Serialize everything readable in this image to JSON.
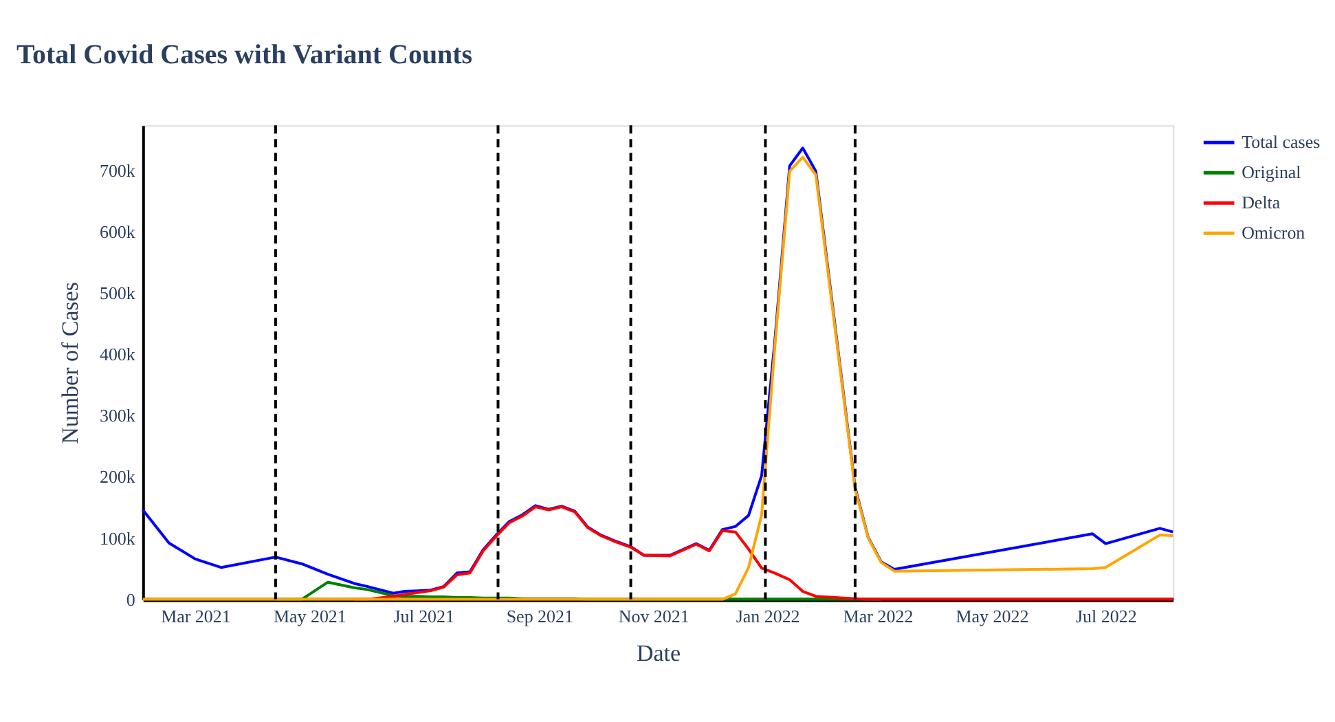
{
  "chart_data": {
    "type": "line",
    "title": "Total Covid Cases with Variant Counts",
    "xlabel": "Date",
    "ylabel": "Number of Cases",
    "x": [
      "2021-02-01",
      "2021-02-15",
      "2021-03-01",
      "2021-03-15",
      "2021-04-13",
      "2021-04-27",
      "2021-05-11",
      "2021-05-25",
      "2021-06-01",
      "2021-06-15",
      "2021-06-21",
      "2021-06-28",
      "2021-07-05",
      "2021-07-12",
      "2021-07-19",
      "2021-07-26",
      "2021-08-02",
      "2021-08-09",
      "2021-08-16",
      "2021-08-23",
      "2021-08-30",
      "2021-09-06",
      "2021-09-13",
      "2021-09-20",
      "2021-09-27",
      "2021-10-04",
      "2021-10-11",
      "2021-10-20",
      "2021-10-27",
      "2021-11-10",
      "2021-11-24",
      "2021-12-01",
      "2021-12-08",
      "2021-12-15",
      "2021-12-22",
      "2021-12-29",
      "2022-01-05",
      "2022-01-13",
      "2022-01-20",
      "2022-01-27",
      "2022-02-17",
      "2022-02-24",
      "2022-03-03",
      "2022-03-10",
      "2022-06-24",
      "2022-07-01",
      "2022-07-30",
      "2022-08-06"
    ],
    "series": [
      {
        "name": "Total cases",
        "color": "#0000ff",
        "values": [
          146000,
          92000,
          66000,
          52000,
          69000,
          58000,
          41000,
          26000,
          21000,
          10000,
          13000,
          14000,
          15000,
          21000,
          43000,
          45000,
          81000,
          105000,
          127000,
          138000,
          153000,
          147000,
          152000,
          144000,
          118000,
          105000,
          96000,
          86000,
          72000,
          72000,
          91000,
          80000,
          114000,
          119000,
          137000,
          202000,
          420000,
          708000,
          737000,
          699000,
          183000,
          101000,
          61000,
          49000,
          107000,
          91000,
          116000,
          110000
        ]
      },
      {
        "name": "Original",
        "color": "#008000",
        "values": [
          null,
          null,
          null,
          null,
          0,
          0,
          28000,
          19000,
          16000,
          6000,
          5000,
          5000,
          4000,
          4000,
          3000,
          3000,
          2000,
          2000,
          2000,
          1000,
          1000,
          1000,
          1000,
          1000,
          0,
          0,
          0,
          0,
          0,
          0,
          0,
          0,
          0,
          0,
          0,
          0,
          0,
          0,
          0,
          0,
          0,
          0,
          0,
          null,
          null,
          null,
          null,
          null
        ]
      },
      {
        "name": "Delta",
        "color": "#ff0000",
        "values": [
          null,
          null,
          null,
          null,
          null,
          null,
          null,
          0,
          0,
          5000,
          8000,
          11000,
          14000,
          20000,
          40000,
          43000,
          79000,
          103000,
          125000,
          136000,
          151000,
          146000,
          151000,
          143000,
          117000,
          104000,
          95000,
          85000,
          72000,
          71000,
          90000,
          79000,
          112000,
          110000,
          82000,
          51000,
          43000,
          32000,
          13000,
          5000,
          1000,
          0,
          0,
          0,
          0,
          0,
          0,
          0
        ]
      },
      {
        "name": "Omicron",
        "color": "#ffa500",
        "values": [
          0,
          0,
          0,
          0,
          0,
          0,
          0,
          0,
          0,
          0,
          0,
          0,
          0,
          0,
          0,
          0,
          0,
          0,
          0,
          0,
          0,
          0,
          0,
          0,
          0,
          0,
          0,
          0,
          0,
          0,
          0,
          0,
          0,
          9000,
          52000,
          138000,
          410000,
          699000,
          722000,
          693000,
          180000,
          100000,
          60000,
          46000,
          50000,
          52000,
          105000,
          104000
        ]
      }
    ],
    "xlim": [
      "2021-02-01",
      "2022-08-06"
    ],
    "xticks": [
      {
        "value": "2021-03-01",
        "label": "Mar 2021"
      },
      {
        "value": "2021-05-01",
        "label": "May 2021"
      },
      {
        "value": "2021-07-01",
        "label": "Jul 2021"
      },
      {
        "value": "2021-09-01",
        "label": "Sep 2021"
      },
      {
        "value": "2021-11-01",
        "label": "Nov 2021"
      },
      {
        "value": "2022-01-01",
        "label": "Jan 2022"
      },
      {
        "value": "2022-03-01",
        "label": "Mar 2022"
      },
      {
        "value": "2022-05-01",
        "label": "May 2022"
      },
      {
        "value": "2022-07-01",
        "label": "Jul 2022"
      }
    ],
    "ylim": [
      0,
      774000
    ],
    "yticks": [
      0,
      {
        "value": 100000,
        "label": "100k"
      },
      {
        "value": 200000,
        "label": "200k"
      },
      {
        "value": 300000,
        "label": "300k"
      },
      {
        "value": 400000,
        "label": "400k"
      },
      {
        "value": 500000,
        "label": "500k"
      },
      {
        "value": 600000,
        "label": "600k"
      },
      {
        "value": 700000,
        "label": "700k"
      }
    ],
    "ref_lines": [
      {
        "axis": "x",
        "value": "2021-04-13",
        "color": "#000000",
        "line_style": "dashed"
      },
      {
        "axis": "x",
        "value": "2021-08-10",
        "color": "#000000",
        "line_style": "dashed"
      },
      {
        "axis": "x",
        "value": "2021-10-20",
        "color": "#000000",
        "line_style": "dashed"
      },
      {
        "axis": "x",
        "value": "2021-12-31",
        "color": "#000000",
        "line_style": "dashed"
      },
      {
        "axis": "x",
        "value": "2022-02-17",
        "color": "#000000",
        "line_style": "dashed"
      }
    ],
    "grid": false,
    "legend": "top right",
    "marker": "none",
    "line_style": "solid"
  }
}
